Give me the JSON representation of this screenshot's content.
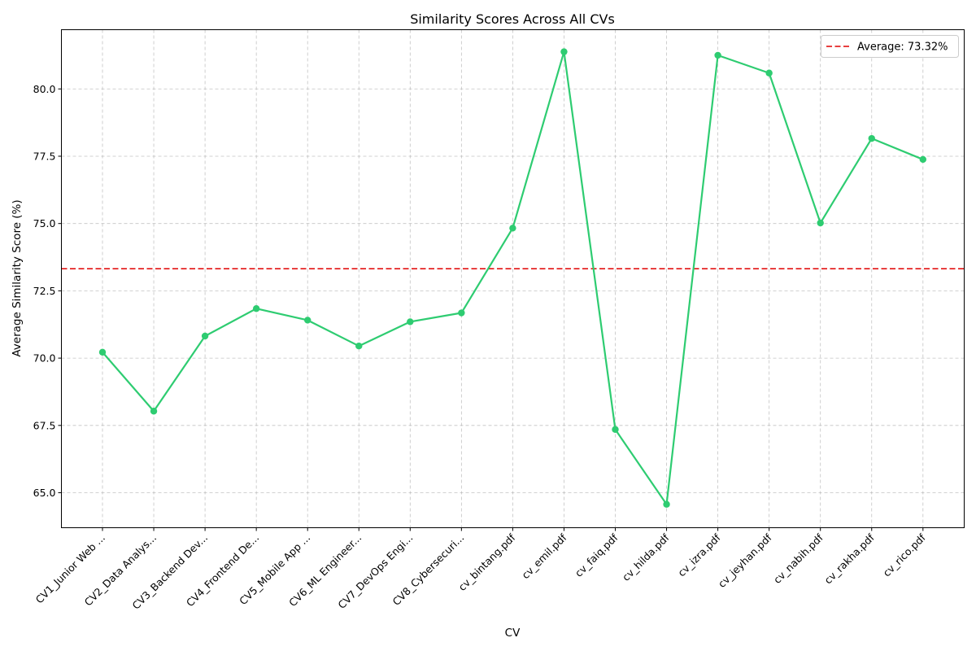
{
  "chart_data": {
    "type": "line",
    "title": "Similarity Scores Across All CVs",
    "xlabel": "CV",
    "ylabel": "Average Similarity Score (%)",
    "categories": [
      "CV1_Junior Web ...",
      "CV2_Data Analys...",
      "CV3_Backend Dev...",
      "CV4_Frontend De...",
      "CV5_Mobile App ...",
      "CV6_ML Engineer...",
      "CV7_DevOps Engi...",
      "CV8_Cybersecuri...",
      "cv_bintang.pdf",
      "cv_emil.pdf",
      "cv_faiq.pdf",
      "cv_hilda.pdf",
      "cv_izra.pdf",
      "cv_jeyhan.pdf",
      "cv_nabih.pdf",
      "cv_rakha.pdf",
      "cv_rico.pdf"
    ],
    "series": [
      {
        "values": [
          70.22,
          68.03,
          70.82,
          71.84,
          71.41,
          70.45,
          71.35,
          71.68,
          74.83,
          81.38,
          67.35,
          64.57,
          81.25,
          80.59,
          75.02,
          78.16,
          77.38
        ],
        "color": "#2ecc71"
      }
    ],
    "average": {
      "value": 73.32,
      "label": "Average: 73.32%",
      "color": "#e00000"
    },
    "ylim": [
      63.7,
      82.2
    ],
    "yticks": [
      "65.0",
      "67.5",
      "70.0",
      "72.5",
      "75.0",
      "77.5",
      "80.0"
    ],
    "grid": true,
    "legend_position": "top-right"
  }
}
